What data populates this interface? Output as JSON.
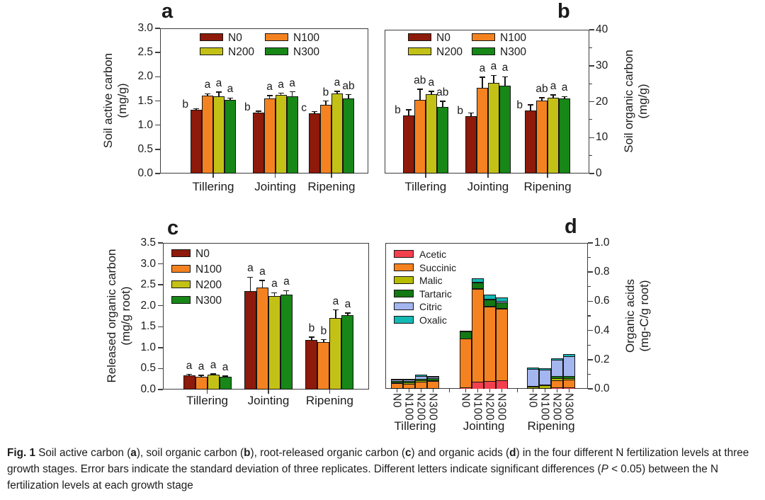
{
  "figure": {
    "caption_segments": [
      {
        "t": "Fig. 1",
        "b": 1
      },
      {
        "t": " Soil active carbon ("
      },
      {
        "t": "a",
        "b": 1
      },
      {
        "t": "), soil organic carbon ("
      },
      {
        "t": "b",
        "b": 1
      },
      {
        "t": "), root-released organic carbon ("
      },
      {
        "t": "c",
        "b": 1
      },
      {
        "t": ") and organic acids ("
      },
      {
        "t": "d",
        "b": 1
      },
      {
        "t": ") in the four different N fertilization levels at three growth stages. Error bars indicate the standard deviation of three replicates. Different letters indicate significant differences ("
      },
      {
        "t": "P",
        "i": 1
      },
      {
        "t": " < 0.05) between the N fertilization levels at each growth stage"
      }
    ]
  },
  "chart_data": [
    {
      "id": "a",
      "type": "bar",
      "panel_label": "a",
      "ylabel": [
        "Soil active carbon",
        "(mg/g)"
      ],
      "ylim": [
        0,
        3.0
      ],
      "yticks": [
        "0.0",
        "0.5",
        "1.0",
        "1.5",
        "2.0",
        "2.5",
        "3.0"
      ],
      "axis_side": "left",
      "categories": [
        "Tillering",
        "Jointing",
        "Ripening"
      ],
      "series": [
        {
          "name": "N0",
          "color": "#8D1A0A",
          "values": [
            1.31,
            1.26,
            1.24
          ],
          "errors": [
            0.03,
            0.03,
            0.04
          ]
        },
        {
          "name": "N100",
          "color": "#F58220",
          "values": [
            1.61,
            1.55,
            1.42
          ],
          "errors": [
            0.04,
            0.06,
            0.08
          ]
        },
        {
          "name": "N200",
          "color": "#C3C116",
          "values": [
            1.6,
            1.62,
            1.65
          ],
          "errors": [
            0.08,
            0.04,
            0.05
          ]
        },
        {
          "name": "N300",
          "color": "#178717",
          "values": [
            1.52,
            1.59,
            1.55
          ],
          "errors": [
            0.04,
            0.1,
            0.08
          ]
        }
      ],
      "letters": [
        [
          "b",
          "a",
          "a",
          "a"
        ],
        [
          "b",
          "a",
          "a",
          "a"
        ],
        [
          "c",
          "b",
          "a",
          "ab"
        ]
      ]
    },
    {
      "id": "b",
      "type": "bar",
      "panel_label": "b",
      "ylabel": [
        "Soil organic carbon",
        "(mg/g)"
      ],
      "ylim": [
        0,
        40
      ],
      "yticks": [
        "0",
        "10",
        "20",
        "30",
        "40"
      ],
      "yticks_minor": [
        5,
        15,
        25,
        35
      ],
      "axis_side": "right",
      "categories": [
        "Tillering",
        "Jointing",
        "Ripening"
      ],
      "series": [
        {
          "name": "N0",
          "color": "#8D1A0A",
          "values": [
            16.2,
            16.0,
            17.6
          ],
          "errors": [
            1.5,
            0.8,
            1.5
          ]
        },
        {
          "name": "N100",
          "color": "#F58220",
          "values": [
            20.4,
            23.8,
            20.3
          ],
          "errors": [
            3.0,
            3.0,
            0.8
          ]
        },
        {
          "name": "N200",
          "color": "#C3C116",
          "values": [
            22.1,
            25.3,
            21.1
          ],
          "errors": [
            0.8,
            2.0,
            0.8
          ]
        },
        {
          "name": "N300",
          "color": "#178717",
          "values": [
            18.6,
            24.4,
            20.9
          ],
          "errors": [
            1.5,
            2.5,
            0.5
          ]
        }
      ],
      "letters": [
        [
          "b",
          "ab",
          "a",
          "ab"
        ],
        [
          "b",
          "a",
          "a",
          "a"
        ],
        [
          "b",
          "ab",
          "a",
          "a"
        ]
      ]
    },
    {
      "id": "c",
      "type": "bar",
      "panel_label": "c",
      "ylabel": [
        "Released organic carbon",
        "(mg/g root)"
      ],
      "ylim": [
        0,
        3.5
      ],
      "yticks": [
        "0.0",
        "0.5",
        "1.0",
        "1.5",
        "2.0",
        "2.5",
        "3.0",
        "3.5"
      ],
      "axis_side": "left",
      "categories": [
        "Tillering",
        "Jointing",
        "Ripening"
      ],
      "series": [
        {
          "name": "N0",
          "color": "#8D1A0A",
          "values": [
            0.34,
            2.35,
            1.19
          ],
          "errors": [
            0.02,
            0.33,
            0.06
          ]
        },
        {
          "name": "N100",
          "color": "#F58220",
          "values": [
            0.31,
            2.44,
            1.13
          ],
          "errors": [
            0.03,
            0.16,
            0.06
          ]
        },
        {
          "name": "N200",
          "color": "#C3C116",
          "values": [
            0.35,
            2.23,
            1.7
          ],
          "errors": [
            0.02,
            0.08,
            0.2
          ]
        },
        {
          "name": "N300",
          "color": "#178717",
          "values": [
            0.3,
            2.26,
            1.77
          ],
          "errors": [
            0.02,
            0.1,
            0.06
          ]
        }
      ],
      "letters": [
        [
          "a",
          "a",
          "a",
          "a"
        ],
        [
          "a",
          "a",
          "a",
          "a"
        ],
        [
          "b",
          "b",
          "a",
          "a"
        ]
      ]
    },
    {
      "id": "d",
      "type": "stacked-bar",
      "panel_label": "d",
      "ylabel": [
        "Organic acids",
        "(mg-C/g root)"
      ],
      "ylim": [
        0,
        1.0
      ],
      "yticks": [
        "0.0",
        "0.2",
        "0.4",
        "0.6",
        "0.8",
        "1.0"
      ],
      "yticks_minor": [
        0.1,
        0.3,
        0.5,
        0.7,
        0.9
      ],
      "axis_side": "right",
      "groups": [
        "Tillering",
        "Jointing",
        "Ripening"
      ],
      "bar_labels": [
        "N0",
        "N100",
        "N200",
        "N300"
      ],
      "components": [
        {
          "name": "Acetic",
          "color": "#F4404E",
          "values": [
            [
              0.003,
              0.003,
              0.004,
              0.004
            ],
            [
              0.01,
              0.05,
              0.055,
              0.06
            ],
            [
              0.0,
              0.0,
              0.008,
              0.01
            ]
          ]
        },
        {
          "name": "Succinic",
          "color": "#F58220",
          "values": [
            [
              0.038,
              0.032,
              0.045,
              0.048
            ],
            [
              0.335,
              0.635,
              0.51,
              0.49
            ],
            [
              0.004,
              0.004,
              0.052,
              0.055
            ]
          ]
        },
        {
          "name": "Malic",
          "color": "#B8BC00",
          "values": [
            [
              0.004,
              0.008,
              0.008,
              0.008
            ],
            [
              0.0,
              0.005,
              0.005,
              0.005
            ],
            [
              0.01,
              0.018,
              0.015,
              0.008
            ]
          ]
        },
        {
          "name": "Tartaric",
          "color": "#147814",
          "values": [
            [
              0.006,
              0.01,
              0.01,
              0.015
            ],
            [
              0.05,
              0.04,
              0.04,
              0.038
            ],
            [
              0.006,
              0.005,
              0.01,
              0.012
            ]
          ]
        },
        {
          "name": "Citric",
          "color": "#A4B6F0",
          "values": [
            [
              0.012,
              0.012,
              0.022,
              0.006
            ],
            [
              0.0,
              0.005,
              0.008,
              0.008
            ],
            [
              0.115,
              0.105,
              0.115,
              0.14
            ]
          ]
        },
        {
          "name": "Oxalic",
          "color": "#14B8B4",
          "values": [
            [
              0.004,
              0.004,
              0.006,
              0.004
            ],
            [
              0.005,
              0.022,
              0.027,
              0.024
            ],
            [
              0.01,
              0.008,
              0.01,
              0.012
            ]
          ]
        }
      ]
    }
  ]
}
